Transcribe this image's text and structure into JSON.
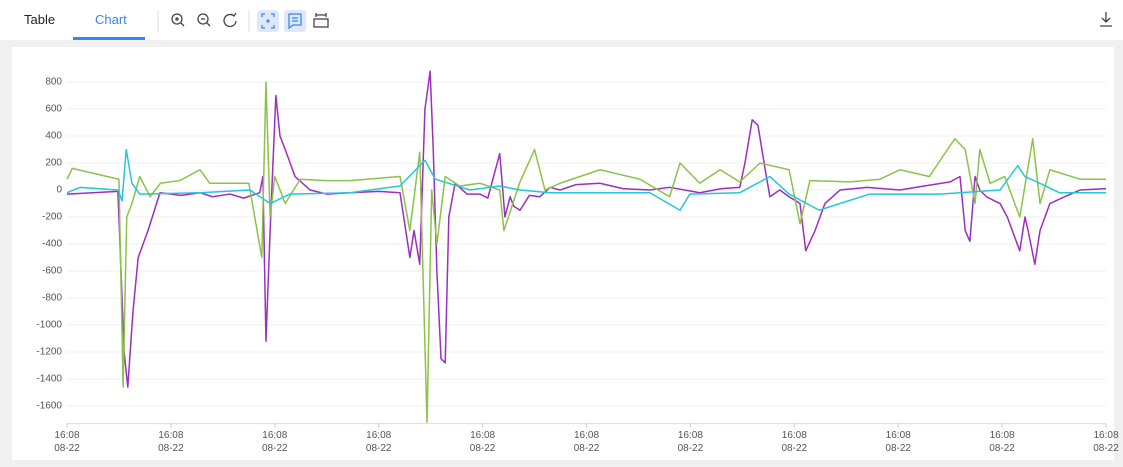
{
  "tabs": [
    "Table",
    "Chart"
  ],
  "chart_data": {
    "type": "line",
    "xlim": [
      0,
      200
    ],
    "xticks": [
      {
        "value": 0,
        "label": "16:08\n08-22"
      },
      {
        "value": 20,
        "label": "16:08\n08-22"
      },
      {
        "value": 40,
        "label": "16:08\n08-22"
      },
      {
        "value": 60,
        "label": "16:08\n08-22"
      },
      {
        "value": 80,
        "label": "16:08\n08-22"
      },
      {
        "value": 100,
        "label": "16:08\n08-22"
      },
      {
        "value": 120,
        "label": "16:08\n08-22"
      },
      {
        "value": 140,
        "label": "16:08\n08-22"
      },
      {
        "value": 160,
        "label": "16:08\n08-22"
      },
      {
        "value": 180,
        "label": "16:08\n08-22"
      },
      {
        "value": 200,
        "label": "16:08\n08-22"
      }
    ],
    "ylim": [
      -1730,
      900
    ],
    "yticks": [
      -1600,
      -1400,
      -1200,
      -1000,
      -800,
      -600,
      -400,
      -200,
      0,
      200,
      400,
      600,
      800
    ],
    "grid": true,
    "series": [
      {
        "color": "#9b2fbf",
        "x": [
          0,
          5,
          9.8,
          11,
          11.7,
          12.7,
          13.7,
          15.6,
          17.9,
          22,
          25.6,
          28,
          31.4,
          34,
          37.1,
          37.7,
          38.3,
          39.1,
          40.2,
          41,
          42,
          43.9,
          46.8,
          50,
          54.5,
          60,
          64.1,
          66,
          66.8,
          67.9,
          68.9,
          69.9,
          70.5,
          71.2,
          72,
          72.8,
          73.5,
          74.7,
          77,
          79.5,
          81,
          83.3,
          84.3,
          85.3,
          86,
          87.2,
          89,
          91,
          93,
          94.9,
          98,
          102.6,
          107,
          112.2,
          116,
          121.8,
          126,
          129.5,
          130.5,
          131.9,
          133,
          134.4,
          135.3,
          137.2,
          139,
          141.1,
          142.2,
          144,
          145.9,
          148.8,
          154,
          160.3,
          165,
          170,
          171.9,
          172.9,
          173.8,
          174.8,
          175.7,
          177,
          179.6,
          181,
          183.4,
          184.4,
          185,
          186.3,
          187.3,
          189.2,
          192,
          195,
          200
        ],
        "values": [
          -30,
          -20,
          -10,
          -1200,
          -1460,
          -900,
          -500,
          -300,
          -20,
          -40,
          -20,
          -50,
          -30,
          -60,
          -20,
          100,
          -1120,
          -300,
          700,
          400,
          300,
          100,
          0,
          -30,
          -20,
          -10,
          -20,
          -500,
          -300,
          -550,
          600,
          880,
          300,
          -600,
          -1250,
          -1280,
          -200,
          50,
          -30,
          -30,
          -60,
          270,
          -200,
          -50,
          -120,
          -150,
          -40,
          -50,
          20,
          0,
          40,
          50,
          10,
          0,
          20,
          -20,
          10,
          20,
          200,
          520,
          480,
          150,
          -50,
          0,
          -50,
          -100,
          -450,
          -300,
          -100,
          0,
          20,
          0,
          30,
          60,
          100,
          -300,
          -380,
          100,
          0,
          -50,
          -100,
          -200,
          -450,
          -200,
          -300,
          -550,
          -300,
          -100,
          -50,
          0,
          10
        ]
      },
      {
        "color": "#8bc34a",
        "x": [
          0,
          1,
          10,
          10.8,
          11.5,
          12.5,
          14,
          16,
          18,
          21.7,
          25.6,
          27.5,
          35,
          37.5,
          38.3,
          39.1,
          40,
          42,
          44.9,
          50,
          54.5,
          64.1,
          66,
          67.9,
          69.3,
          70.2,
          71.2,
          72.8,
          75.6,
          79.5,
          83.3,
          84.1,
          87.2,
          90,
          92,
          94.9,
          102.6,
          110.3,
          116,
          118,
          121.8,
          125.7,
          129.5,
          133.4,
          139,
          141.1,
          143,
          150.7,
          156.5,
          160.3,
          166,
          170.9,
          172.9,
          174.8,
          175.7,
          177.7,
          180.5,
          183.4,
          185.9,
          187.3,
          189.2,
          195,
          200
        ],
        "values": [
          80,
          160,
          80,
          -1460,
          -200,
          -100,
          100,
          -50,
          50,
          70,
          150,
          50,
          50,
          -500,
          800,
          -200,
          100,
          -100,
          80,
          70,
          70,
          100,
          -300,
          280,
          -1720,
          0,
          -400,
          100,
          30,
          50,
          0,
          -300,
          60,
          300,
          0,
          50,
          150,
          80,
          -50,
          200,
          50,
          150,
          60,
          200,
          150,
          -250,
          70,
          60,
          80,
          150,
          100,
          380,
          300,
          -100,
          300,
          50,
          100,
          -200,
          380,
          -100,
          150,
          80,
          80
        ]
      },
      {
        "color": "#26c6da",
        "x": [
          0,
          2.5,
          9.8,
          10.6,
          11.4,
          12.5,
          14,
          25.6,
          35.2,
          39.1,
          42.9,
          54.5,
          64.1,
          68.9,
          70.9,
          77.6,
          83.3,
          87.2,
          93,
          112.2,
          118,
          119.9,
          129.5,
          135.3,
          139,
          144.8,
          148.8,
          154.5,
          168,
          179.6,
          183,
          184.4,
          187.3,
          191,
          200
        ],
        "values": [
          -20,
          20,
          0,
          -80,
          300,
          50,
          -30,
          -20,
          0,
          -100,
          -30,
          -20,
          30,
          220,
          80,
          0,
          30,
          0,
          -20,
          -20,
          -150,
          -30,
          -20,
          100,
          -30,
          -150,
          -100,
          -30,
          -30,
          0,
          180,
          100,
          50,
          -20,
          -20
        ]
      }
    ]
  }
}
